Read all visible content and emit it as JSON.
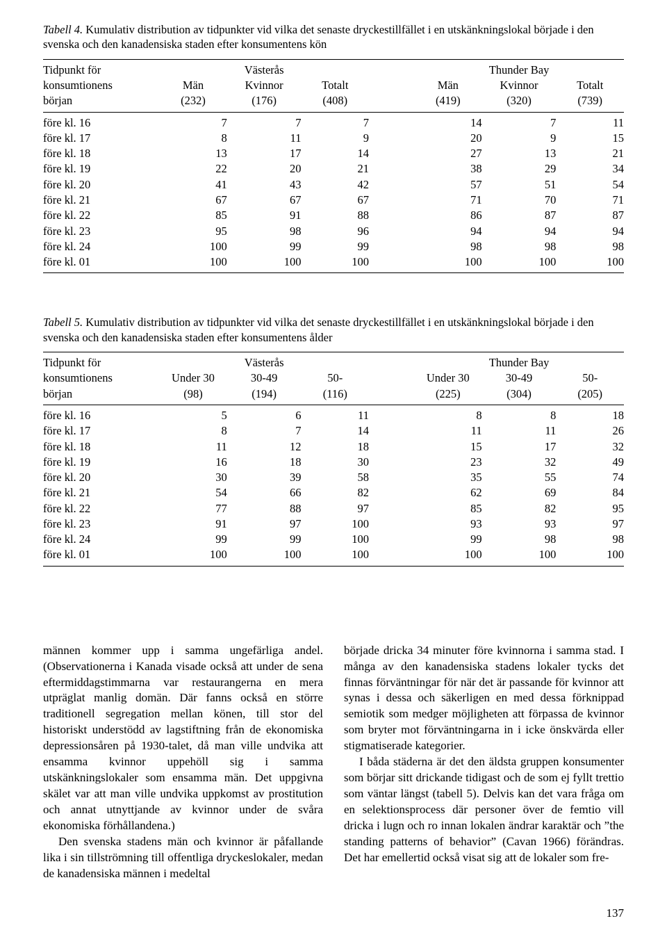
{
  "table4": {
    "label": "Tabell 4.",
    "caption": "Kumulativ distribution av tidpunkter vid vilka det senaste dryckestillfället i en utskänkningslokal började i den svenska och den kanadensiska staden efter konsumentens kön",
    "stub_top": "Tidpunkt för",
    "stub_mid": "konsumtionens",
    "stub_bot": "början",
    "cities": [
      "Västerås",
      "Thunder Bay"
    ],
    "cols_a": [
      "Män",
      "Kvinnor",
      "Totalt"
    ],
    "cols_b": [
      "Män",
      "Kvinnor",
      "Totalt"
    ],
    "n_a": [
      "(232)",
      "(176)",
      "(408)"
    ],
    "n_b": [
      "(419)",
      "(320)",
      "(739)"
    ],
    "rows": [
      {
        "lab": "före kl. 16",
        "a": [
          7,
          7,
          7
        ],
        "b": [
          14,
          7,
          11
        ]
      },
      {
        "lab": "före kl. 17",
        "a": [
          8,
          11,
          9
        ],
        "b": [
          20,
          9,
          15
        ]
      },
      {
        "lab": "före kl. 18",
        "a": [
          13,
          17,
          14
        ],
        "b": [
          27,
          13,
          21
        ]
      },
      {
        "lab": "före kl. 19",
        "a": [
          22,
          20,
          21
        ],
        "b": [
          38,
          29,
          34
        ]
      },
      {
        "lab": "före kl. 20",
        "a": [
          41,
          43,
          42
        ],
        "b": [
          57,
          51,
          54
        ]
      },
      {
        "lab": "före kl. 21",
        "a": [
          67,
          67,
          67
        ],
        "b": [
          71,
          70,
          71
        ]
      },
      {
        "lab": "före kl. 22",
        "a": [
          85,
          91,
          88
        ],
        "b": [
          86,
          87,
          87
        ]
      },
      {
        "lab": "före kl. 23",
        "a": [
          95,
          98,
          96
        ],
        "b": [
          94,
          94,
          94
        ]
      },
      {
        "lab": "före kl. 24",
        "a": [
          100,
          99,
          99
        ],
        "b": [
          98,
          98,
          98
        ]
      },
      {
        "lab": "före kl. 01",
        "a": [
          100,
          100,
          100
        ],
        "b": [
          100,
          100,
          100
        ]
      }
    ]
  },
  "table5": {
    "label": "Tabell 5.",
    "caption": "Kumulativ distribution av tidpunkter vid vilka det senaste dryckestillfället i en utskänkningslokal började i den svenska och den kanadensiska staden efter konsumentens ålder",
    "stub_top": "Tidpunkt för",
    "stub_mid": "konsumtionens",
    "stub_bot": "början",
    "cities": [
      "Västerås",
      "Thunder Bay"
    ],
    "cols_a": [
      "Under 30",
      "30-49",
      "50-"
    ],
    "cols_b": [
      "Under 30",
      "30-49",
      "50-"
    ],
    "n_a": [
      "(98)",
      "(194)",
      "(116)"
    ],
    "n_b": [
      "(225)",
      "(304)",
      "(205)"
    ],
    "rows": [
      {
        "lab": "före kl. 16",
        "a": [
          5,
          6,
          11
        ],
        "b": [
          8,
          8,
          18
        ]
      },
      {
        "lab": "före kl. 17",
        "a": [
          8,
          7,
          14
        ],
        "b": [
          11,
          11,
          26
        ]
      },
      {
        "lab": "före kl. 18",
        "a": [
          11,
          12,
          18
        ],
        "b": [
          15,
          17,
          32
        ]
      },
      {
        "lab": "före kl. 19",
        "a": [
          16,
          18,
          30
        ],
        "b": [
          23,
          32,
          49
        ]
      },
      {
        "lab": "före kl. 20",
        "a": [
          30,
          39,
          58
        ],
        "b": [
          35,
          55,
          74
        ]
      },
      {
        "lab": "före kl. 21",
        "a": [
          54,
          66,
          82
        ],
        "b": [
          62,
          69,
          84
        ]
      },
      {
        "lab": "före kl. 22",
        "a": [
          77,
          88,
          97
        ],
        "b": [
          85,
          82,
          95
        ]
      },
      {
        "lab": "före kl. 23",
        "a": [
          91,
          97,
          100
        ],
        "b": [
          93,
          93,
          97
        ]
      },
      {
        "lab": "före kl. 24",
        "a": [
          99,
          99,
          100
        ],
        "b": [
          99,
          98,
          98
        ]
      },
      {
        "lab": "före kl. 01",
        "a": [
          100,
          100,
          100
        ],
        "b": [
          100,
          100,
          100
        ]
      }
    ]
  },
  "body": {
    "p1a": "männen kommer upp i samma ungefärliga andel. (Observationerna i Kanada visade också att under de sena eftermiddagstimmarna var restaurangerna en mera utpräglat manlig domän. Där fanns också en större traditionell segregation mellan könen, till stor del historiskt understödd av lagstiftning från de ekonomiska depressionsåren på 1930-talet, då man ville undvika att ensamma kvinnor uppehöll sig i samma utskänkningslokaler som ensamma män. Det uppgivna skälet var att man ville undvika uppkomst av prostitution och annat utnyttjande av kvinnor under de svåra ekonomiska förhållandena.)",
    "p1b": "Den svenska stadens män och kvinnor är påfallande lika i sin tillströmning till offentliga dryckeslokaler, medan de kanadensiska männen i medeltal",
    "p2a": "började dricka 34 minuter före kvinnorna i samma stad. I många av den kanadensiska stadens lokaler tycks det finnas förväntningar för när det är passande för kvinnor att synas i dessa och säkerligen en med dessa förknippad semiotik som medger möjligheten att förpassa de kvinnor som bryter mot förväntningarna in i icke önskvärda eller stigmatiserade kategorier.",
    "p2b": "I båda städerna är det den äldsta gruppen konsumenter som börjar sitt drickande tidigast och de som ej fyllt trettio som väntar längst (tabell 5). Delvis kan det vara fråga om en selektionsprocess där personer över de femtio vill dricka i lugn och ro innan lokalen ändrar karaktär och ”the standing patterns of behavior” (Cavan 1966) förändras. Det har emellertid också visat sig att de lokaler som fre-"
  },
  "page_number": "137"
}
